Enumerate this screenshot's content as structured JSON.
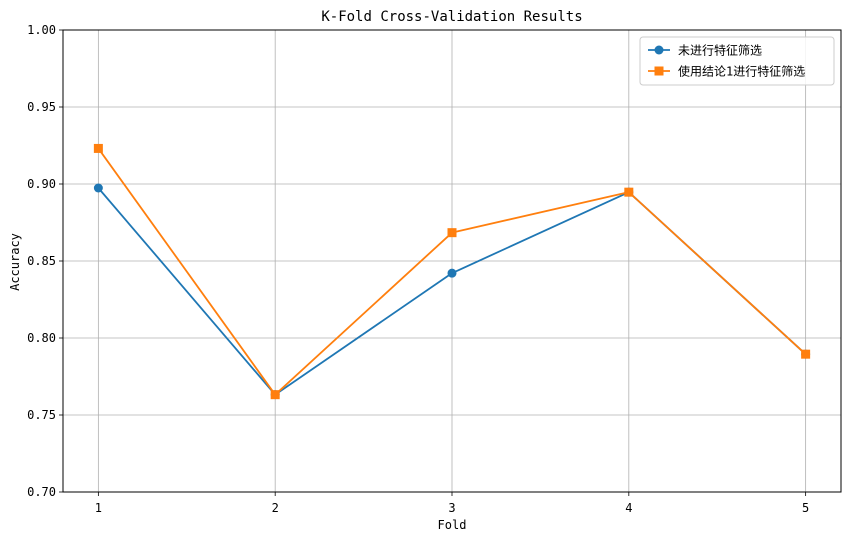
{
  "chart_data": {
    "type": "line",
    "title": "K-Fold Cross-Validation Results",
    "xlabel": "Fold",
    "ylabel": "Accuracy",
    "x": [
      1,
      2,
      3,
      4,
      5
    ],
    "x_ticks": [
      "1",
      "2",
      "3",
      "4",
      "5"
    ],
    "xlim": [
      0.8,
      5.2
    ],
    "ylim": [
      0.7,
      1.0
    ],
    "y_ticks": [
      "0.70",
      "0.75",
      "0.80",
      "0.85",
      "0.90",
      "0.95",
      "1.00"
    ],
    "grid": true,
    "legend_position": "top-right",
    "series": [
      {
        "name": "未进行特征筛选",
        "values": [
          0.8974,
          0.7632,
          0.8421,
          0.8947,
          0.7895
        ],
        "color": "#1f77b4",
        "marker": "circle"
      },
      {
        "name": "使用结论1进行特征筛选",
        "values": [
          0.9231,
          0.7632,
          0.8684,
          0.8947,
          0.7895
        ],
        "color": "#ff7f0e",
        "marker": "square"
      }
    ]
  }
}
